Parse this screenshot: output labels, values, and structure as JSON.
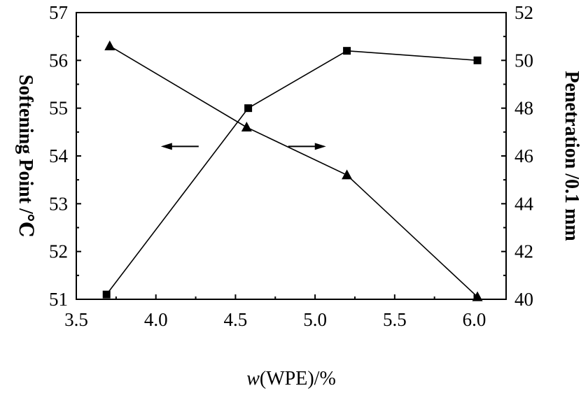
{
  "chart_data": {
    "type": "line",
    "title": "",
    "xlabel_italic": "w",
    "xlabel_rest": "(WPE)/%",
    "ylabel_left": "Softening Point /℃",
    "ylabel_right": "Penetration /0.1 mm",
    "xlim": [
      3.5,
      6.2
    ],
    "ylim_left": [
      51,
      57
    ],
    "ylim_right": [
      40,
      52
    ],
    "xticks": [
      3.5,
      4.0,
      4.5,
      5.0,
      5.5,
      6.0
    ],
    "xtick_labels": [
      "3.5",
      "4.0",
      "4.5",
      "5.0",
      "5.5",
      "6.0"
    ],
    "yticks_left": [
      51,
      52,
      53,
      54,
      55,
      56,
      57
    ],
    "ytick_labels_left": [
      "51",
      "52",
      "53",
      "54",
      "55",
      "56",
      "57"
    ],
    "yticks_right": [
      40,
      42,
      44,
      46,
      48,
      50,
      52
    ],
    "ytick_labels_right": [
      "40",
      "42",
      "44",
      "46",
      "48",
      "50",
      "52"
    ],
    "series": [
      {
        "name": "Softening Point",
        "axis": "left",
        "marker": "square",
        "x": [
          3.69,
          4.58,
          5.2,
          6.02
        ],
        "y": [
          51.1,
          55.0,
          56.2,
          56.0
        ]
      },
      {
        "name": "Penetration",
        "axis": "right",
        "marker": "triangle",
        "x": [
          3.71,
          4.57,
          5.2,
          6.02
        ],
        "y": [
          50.6,
          47.2,
          45.2,
          40.1
        ]
      }
    ],
    "annotations": [
      {
        "type": "arrow",
        "direction": "left",
        "refers_to": "Softening Point",
        "x": 4.15,
        "y_left": 54.2
      },
      {
        "type": "arrow",
        "direction": "right",
        "refers_to": "Penetration",
        "x": 4.95,
        "y_left": 54.2
      }
    ]
  }
}
